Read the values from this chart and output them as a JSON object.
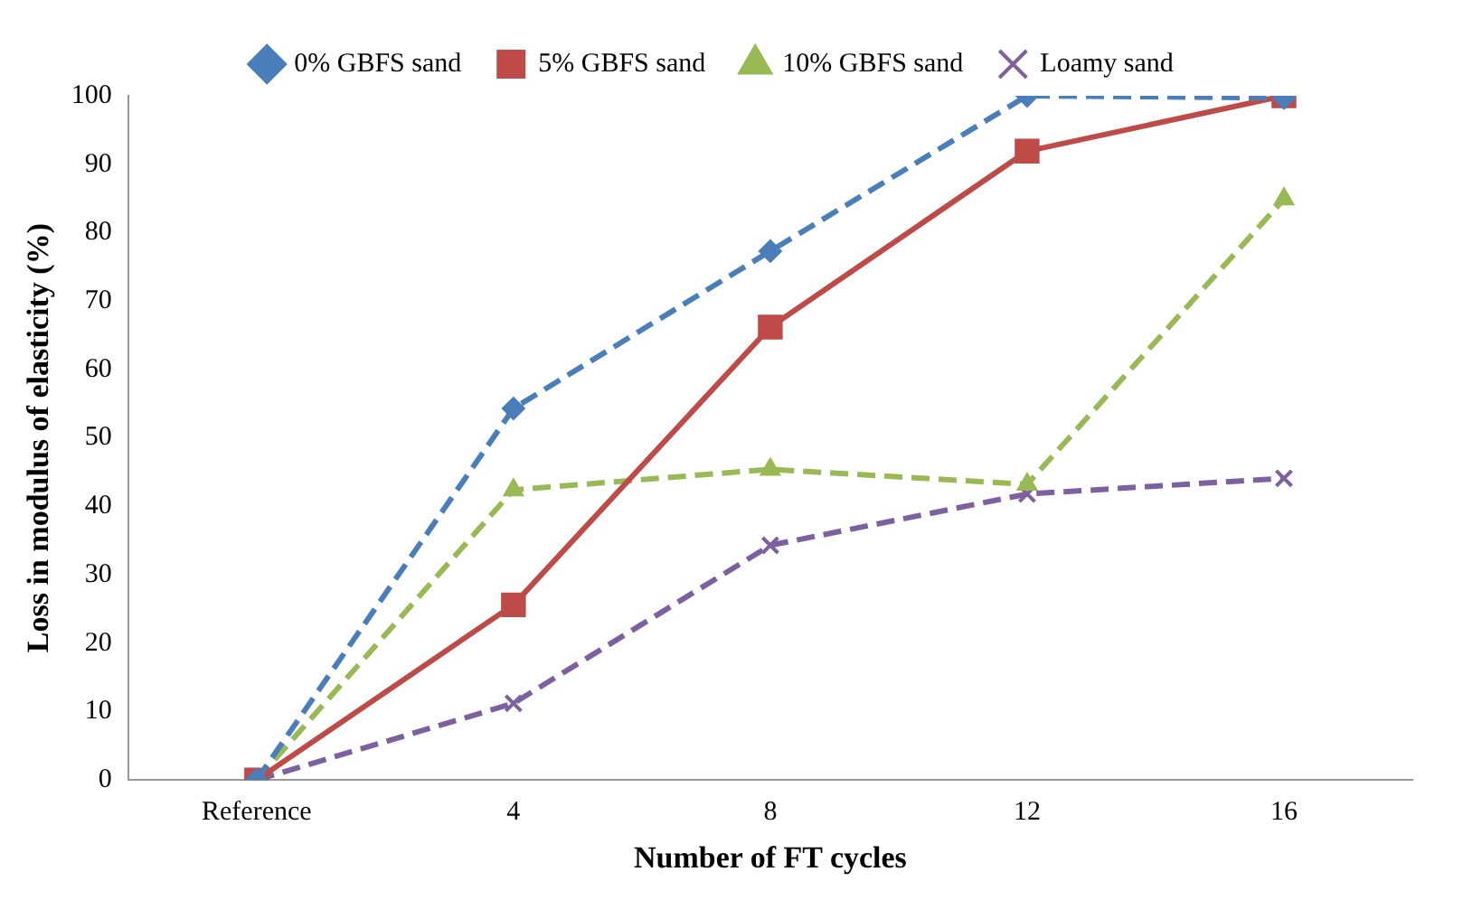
{
  "chart_data": {
    "type": "line",
    "xlabel": "Number of FT cycles",
    "ylabel": "Loss in modulus of elasticity (%)",
    "categories": [
      "Reference",
      "4",
      "8",
      "12",
      "16"
    ],
    "ylim": [
      0,
      100
    ],
    "yticks": [
      0,
      10,
      20,
      30,
      40,
      50,
      60,
      70,
      80,
      90,
      100
    ],
    "grid": false,
    "legend": "top",
    "series": [
      {
        "name": "0% GBFS sand",
        "color": "#4a7ebb",
        "marker": "diamond",
        "line_style": "dashed",
        "values": [
          0,
          54.3,
          77.3,
          100,
          99.7
        ]
      },
      {
        "name": "5% GBFS sand",
        "color": "#be4b48",
        "marker": "square",
        "line_style": "solid",
        "values": [
          0,
          25.6,
          66.2,
          91.9,
          100
        ]
      },
      {
        "name": "10% GBFS sand",
        "color": "#98b954",
        "marker": "triangle",
        "line_style": "dashed",
        "values": [
          0,
          42.4,
          45.4,
          43.2,
          84.9
        ]
      },
      {
        "name": "Loamy sand",
        "color": "#7d60a0",
        "marker": "cross",
        "line_style": "dashed",
        "values": [
          0,
          11.2,
          34.3,
          41.8,
          44.1
        ]
      }
    ]
  }
}
